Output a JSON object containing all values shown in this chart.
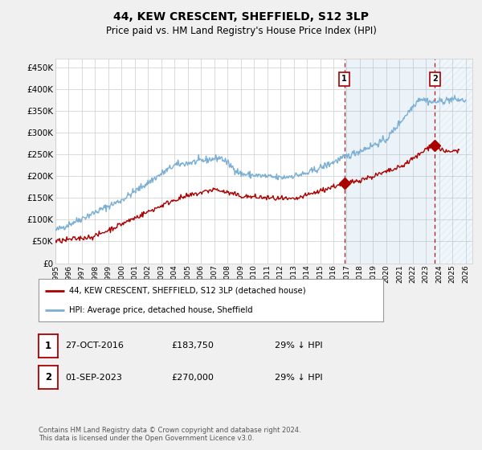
{
  "title": "44, KEW CRESCENT, SHEFFIELD, S12 3LP",
  "subtitle": "Price paid vs. HM Land Registry's House Price Index (HPI)",
  "ylabel_ticks": [
    "£0",
    "£50K",
    "£100K",
    "£150K",
    "£200K",
    "£250K",
    "£300K",
    "£350K",
    "£400K",
    "£450K"
  ],
  "ylabel_values": [
    0,
    50000,
    100000,
    150000,
    200000,
    250000,
    300000,
    350000,
    400000,
    450000
  ],
  "ylim": [
    0,
    470000
  ],
  "xlim_start": 1995.0,
  "xlim_end": 2026.5,
  "hpi_color": "#7bafd4",
  "price_color": "#aa0000",
  "transaction1_date": 2016.82,
  "transaction1_price": 183750,
  "transaction2_date": 2023.67,
  "transaction2_price": 270000,
  "legend_line1": "44, KEW CRESCENT, SHEFFIELD, S12 3LP (detached house)",
  "legend_line2": "HPI: Average price, detached house, Sheffield",
  "table_row1_num": "1",
  "table_row1_date": "27-OCT-2016",
  "table_row1_price": "£183,750",
  "table_row1_hpi": "29% ↓ HPI",
  "table_row2_num": "2",
  "table_row2_date": "01-SEP-2023",
  "table_row2_price": "£270,000",
  "table_row2_hpi": "29% ↓ HPI",
  "footnote": "Contains HM Land Registry data © Crown copyright and database right 2024.\nThis data is licensed under the Open Government Licence v3.0.",
  "background_color": "#f0f0f0",
  "plot_bg_color": "#ffffff",
  "grid_color": "#cccccc",
  "shade_color": "#ddeeff"
}
